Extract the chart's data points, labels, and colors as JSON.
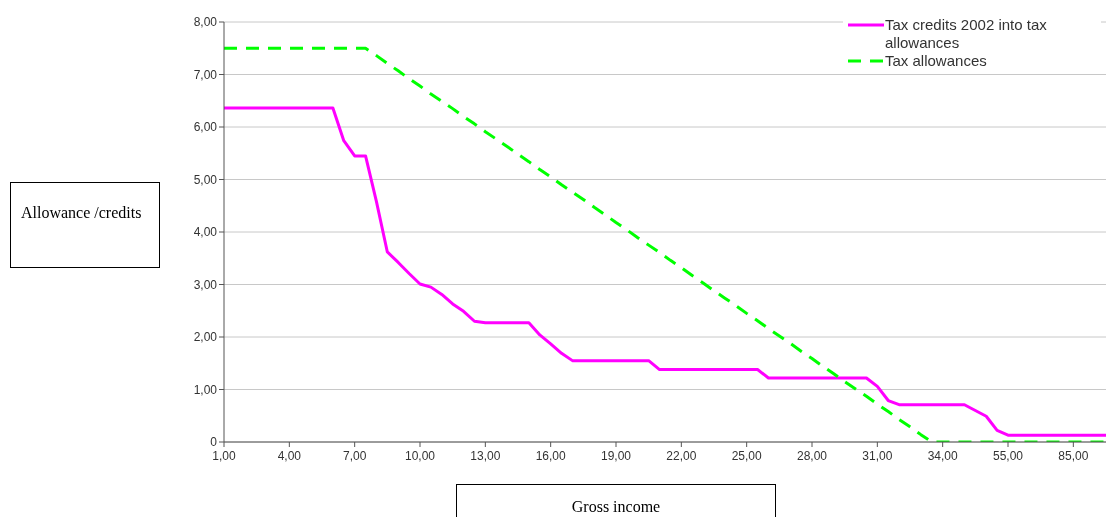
{
  "chart_data": {
    "type": "line",
    "xlabel": "Gross income",
    "ylabel": "Allowance /credits",
    "categories": [
      "1,00",
      null,
      null,
      null,
      null,
      null,
      "4,00",
      null,
      null,
      null,
      null,
      null,
      "7,00",
      null,
      null,
      null,
      null,
      null,
      "10,00",
      null,
      null,
      null,
      null,
      null,
      "13,00",
      null,
      null,
      null,
      null,
      null,
      "16,00",
      null,
      null,
      null,
      null,
      null,
      "19,00",
      null,
      null,
      null,
      null,
      null,
      "22,00",
      null,
      null,
      null,
      null,
      null,
      "25,00",
      null,
      null,
      null,
      null,
      null,
      "28,00",
      null,
      null,
      null,
      null,
      null,
      "31,00",
      null,
      null,
      null,
      null,
      null,
      "34,00",
      null,
      null,
      null,
      null,
      null,
      "55,00",
      null,
      null,
      null,
      null,
      null,
      "85,00",
      null,
      null,
      null
    ],
    "series": [
      {
        "name": "Tax credits 2002 into tax allowances",
        "color": "#ff00ff",
        "line_style": "solid",
        "values": [
          6.36,
          6.36,
          6.36,
          6.36,
          6.36,
          6.36,
          6.36,
          6.36,
          6.36,
          6.36,
          6.36,
          5.74,
          5.45,
          5.45,
          4.58,
          3.62,
          3.42,
          3.21,
          3.01,
          2.95,
          2.81,
          2.63,
          2.49,
          2.3,
          2.27,
          2.27,
          2.27,
          2.27,
          2.27,
          2.04,
          1.87,
          1.69,
          1.55,
          1.55,
          1.55,
          1.55,
          1.55,
          1.55,
          1.55,
          1.55,
          1.38,
          1.38,
          1.38,
          1.38,
          1.38,
          1.38,
          1.38,
          1.38,
          1.38,
          1.38,
          1.22,
          1.22,
          1.22,
          1.22,
          1.22,
          1.22,
          1.22,
          1.22,
          1.22,
          1.22,
          1.06,
          0.79,
          0.71,
          0.71,
          0.71,
          0.71,
          0.71,
          0.71,
          0.71,
          0.6,
          0.49,
          0.22,
          0.13,
          0.13,
          0.13,
          0.13,
          0.13,
          0.13,
          0.13,
          0.13,
          0.13,
          0.13
        ]
      },
      {
        "name": "Tax allowances",
        "color": "#00ff00",
        "line_style": "dashed",
        "values": [
          7.5,
          7.5,
          7.5,
          7.5,
          7.5,
          7.5,
          7.5,
          7.5,
          7.5,
          7.5,
          7.5,
          7.5,
          7.5,
          7.5,
          7.36,
          7.21,
          7.07,
          6.92,
          6.78,
          6.63,
          6.49,
          6.35,
          6.2,
          6.06,
          5.91,
          5.77,
          5.63,
          5.48,
          5.34,
          5.19,
          5.05,
          4.9,
          4.76,
          4.62,
          4.47,
          4.33,
          4.18,
          4.04,
          3.89,
          3.75,
          3.61,
          3.46,
          3.32,
          3.17,
          3.03,
          2.88,
          2.74,
          2.6,
          2.45,
          2.31,
          2.16,
          2.02,
          1.88,
          1.73,
          1.59,
          1.44,
          1.3,
          1.15,
          1.01,
          0.87,
          0.72,
          0.58,
          0.43,
          0.29,
          0.14,
          0,
          0,
          0,
          0,
          0,
          0,
          0,
          0,
          0,
          0,
          0,
          0,
          0,
          0,
          0,
          0,
          0
        ]
      }
    ],
    "ylim": [
      0,
      8
    ],
    "yticks": [
      0,
      {
        "value": 1,
        "label": "1,00"
      },
      {
        "value": 2,
        "label": "2,00"
      },
      {
        "value": 3,
        "label": "3,00"
      },
      {
        "value": 4,
        "label": "4,00"
      },
      {
        "value": 5,
        "label": "5,00"
      },
      {
        "value": 6,
        "label": "6,00"
      },
      {
        "value": 7,
        "label": "7,00"
      },
      {
        "value": 8,
        "label": "8,00"
      }
    ],
    "grid": "y",
    "legend": "top right",
    "marker": "none"
  }
}
